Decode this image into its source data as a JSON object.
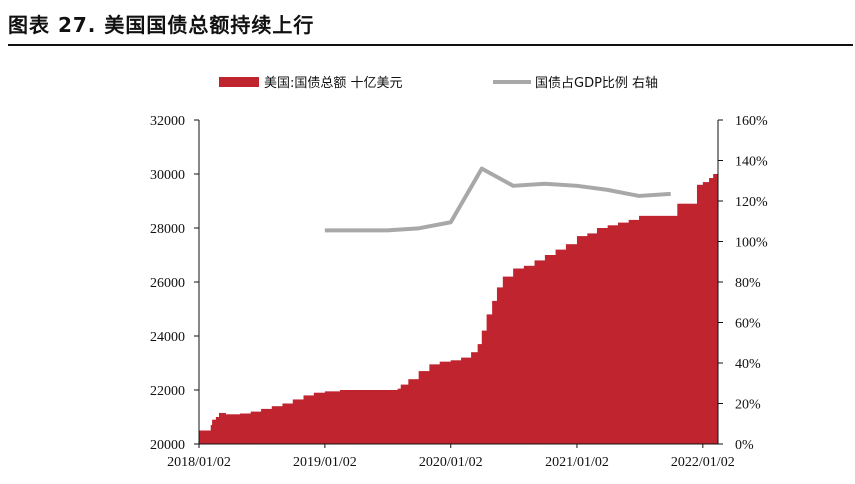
{
  "figure": {
    "title": "图表 27. 美国国债总额持续上行"
  },
  "chart_data": {
    "type": "bar",
    "legend": {
      "placement": "top-center",
      "items": [
        {
          "label": "美国:国债总额 十亿美元",
          "kind": "bar",
          "color": "#c0242f"
        },
        {
          "label": "国债占GDP比例 右轴",
          "kind": "line",
          "color": "#a8a8a8"
        }
      ]
    },
    "x_axis": {
      "tick_labels": [
        "2018/01/02",
        "2019/01/02",
        "2020/01/02",
        "2021/01/02",
        "2022/01/02"
      ],
      "range": [
        "2018-01-02",
        "2022-02-15"
      ]
    },
    "y_left": {
      "range": [
        20000,
        32000
      ],
      "tick_values": [
        20000,
        22000,
        24000,
        26000,
        28000,
        30000,
        32000
      ],
      "tick_labels": [
        "20000",
        "22000",
        "24000",
        "26000",
        "28000",
        "30000",
        "32000"
      ]
    },
    "y_right": {
      "range": [
        0,
        160
      ],
      "tick_values": [
        0,
        20,
        40,
        60,
        80,
        100,
        120,
        140,
        160
      ],
      "tick_labels": [
        "0%",
        "20%",
        "40%",
        "60%",
        "80%",
        "100%",
        "120%",
        "140%",
        "160%"
      ]
    },
    "grid": false,
    "series": [
      {
        "name": "美国:国债总额 十亿美元",
        "type": "bar",
        "axis": "left",
        "color": "#c0242f",
        "points": [
          [
            "2018-01-02",
            20500
          ],
          [
            "2018-01-20",
            20500
          ],
          [
            "2018-02-05",
            20700
          ],
          [
            "2018-02-09",
            20900
          ],
          [
            "2018-02-20",
            21000
          ],
          [
            "2018-03-01",
            21150
          ],
          [
            "2018-03-20",
            21100
          ],
          [
            "2018-04-15",
            21100
          ],
          [
            "2018-05-01",
            21130
          ],
          [
            "2018-06-01",
            21200
          ],
          [
            "2018-07-01",
            21300
          ],
          [
            "2018-08-01",
            21400
          ],
          [
            "2018-09-01",
            21500
          ],
          [
            "2018-10-01",
            21650
          ],
          [
            "2018-11-01",
            21800
          ],
          [
            "2018-12-01",
            21900
          ],
          [
            "2019-01-02",
            21950
          ],
          [
            "2019-02-15",
            22000
          ],
          [
            "2019-03-01",
            22000
          ],
          [
            "2019-05-01",
            22000
          ],
          [
            "2019-07-01",
            22000
          ],
          [
            "2019-08-01",
            22050
          ],
          [
            "2019-08-10",
            22200
          ],
          [
            "2019-09-01",
            22400
          ],
          [
            "2019-10-01",
            22700
          ],
          [
            "2019-11-01",
            22950
          ],
          [
            "2019-12-01",
            23050
          ],
          [
            "2020-01-02",
            23100
          ],
          [
            "2020-02-01",
            23200
          ],
          [
            "2020-03-01",
            23400
          ],
          [
            "2020-03-20",
            23700
          ],
          [
            "2020-04-01",
            24200
          ],
          [
            "2020-04-15",
            24800
          ],
          [
            "2020-05-01",
            25300
          ],
          [
            "2020-05-15",
            25800
          ],
          [
            "2020-06-01",
            26200
          ],
          [
            "2020-07-01",
            26500
          ],
          [
            "2020-08-01",
            26600
          ],
          [
            "2020-09-01",
            26800
          ],
          [
            "2020-10-01",
            27000
          ],
          [
            "2020-11-01",
            27200
          ],
          [
            "2020-12-01",
            27400
          ],
          [
            "2021-01-02",
            27700
          ],
          [
            "2021-02-01",
            27800
          ],
          [
            "2021-03-01",
            28000
          ],
          [
            "2021-04-01",
            28100
          ],
          [
            "2021-05-01",
            28200
          ],
          [
            "2021-06-01",
            28300
          ],
          [
            "2021-07-01",
            28450
          ],
          [
            "2021-08-01",
            28450
          ],
          [
            "2021-09-01",
            28450
          ],
          [
            "2021-10-01",
            28450
          ],
          [
            "2021-10-20",
            28900
          ],
          [
            "2021-11-15",
            28900
          ],
          [
            "2021-12-16",
            29600
          ],
          [
            "2022-01-02",
            29700
          ],
          [
            "2022-01-20",
            29850
          ],
          [
            "2022-02-01",
            30000
          ],
          [
            "2022-02-15",
            30100
          ]
        ]
      },
      {
        "name": "国债占GDP比例 右轴",
        "type": "line",
        "axis": "right",
        "color": "#a8a8a8",
        "points": [
          [
            "2019-01-02",
            105.5
          ],
          [
            "2019-04-01",
            105.5
          ],
          [
            "2019-07-01",
            105.5
          ],
          [
            "2019-10-01",
            106.5
          ],
          [
            "2020-01-02",
            109.5
          ],
          [
            "2020-04-01",
            136
          ],
          [
            "2020-07-01",
            127.5
          ],
          [
            "2020-10-01",
            128.5
          ],
          [
            "2021-01-02",
            127.5
          ],
          [
            "2021-04-01",
            125.5
          ],
          [
            "2021-07-01",
            122.5
          ],
          [
            "2021-10-01",
            123.5
          ]
        ]
      }
    ]
  }
}
